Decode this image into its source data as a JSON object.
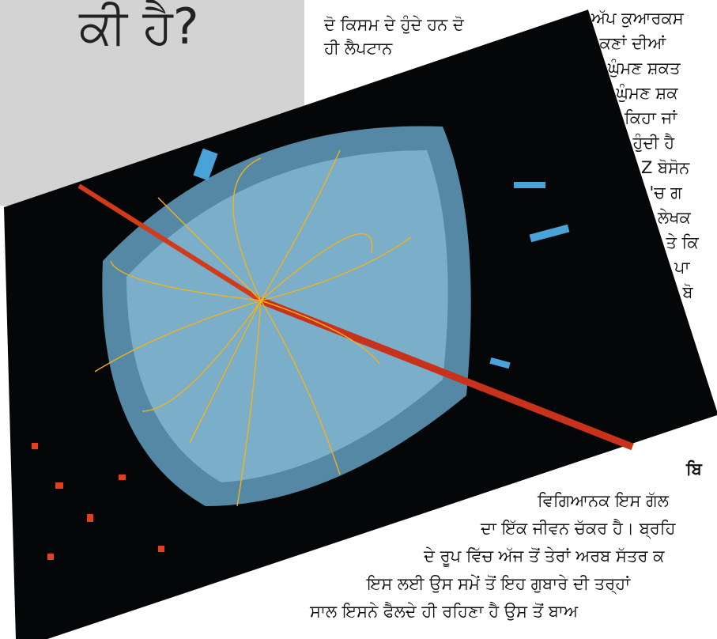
{
  "header": {
    "title": "ਕੀ ਹੈ?"
  },
  "top_column": {
    "lines": [
      "ਦੋ ਕਿਸਮ ਦੇ ਹੁੰਦੇ ਹਨ ਦੋ",
      "ਹੀ ਲੈਪਟਾਨ"
    ]
  },
  "right_column": {
    "lines": [
      "ਅੱਪ ਕੁਆਰਕਸ",
      "ਕਣਾਂ ਦੀਆਂ",
      "ਘੁੰਮਣ ਸ਼ਕਤ",
      "ਘੁੰਮਣ ਸ਼ਕ",
      "ਕਿਹਾ ਜਾਂ",
      "ਹੁੰਦੀ ਹੈ",
      "Z ਬੋਸੋਨ",
      "'ਚ ਗ",
      "ਲੇਖਕ",
      "ਤੇ ਕਿ",
      "ਪਾ",
      "ਬੋ"
    ]
  },
  "bottom_section": {
    "heading": "ਬਿ",
    "lines": [
      "ਵਿਗਿਆਨਕ ਇਸ ਗੱਲ",
      "ਦਾ ਇੱਕ ਜੀਵਨ ਚੱਕਰ ਹੈ। ਬ੍ਰਹਿ",
      "ਦੇ ਰੂਪ ਵਿੱਚ ਅੱਜ ਤੋਂ ਤੇਰਾਂ ਅਰਬ ਸੱਤਰ ਕ",
      "ਇਸ ਲਈ ਉਸ ਸਮੇਂ ਤੋਂ ਇਹ ਗੁਬਾਰੇ ਦੀ ਤਰ੍ਹਾਂ",
      "ਸਾਲ ਇਸਨੇ ਫੈਲਦੇ ਹੀ ਰਹਿਣਾ ਹੈ ਉਸ ਤੋਂ ਬਾਅ"
    ]
  }
}
